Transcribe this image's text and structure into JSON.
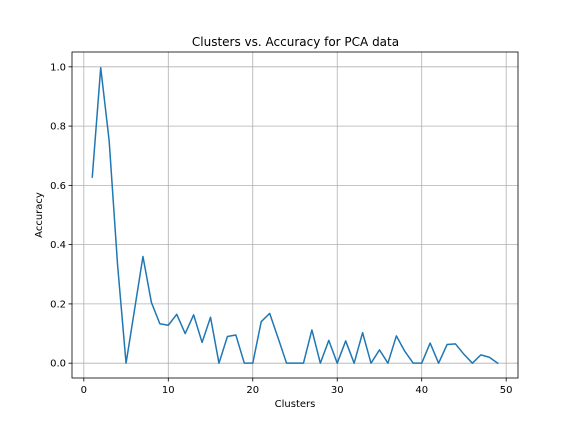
{
  "chart_data": {
    "type": "line",
    "title": "Clusters vs. Accuracy for PCA data",
    "xlabel": "Clusters",
    "ylabel": "Accuracy",
    "xlim": [
      -1.4,
      51.4
    ],
    "ylim": [
      -0.05,
      1.05
    ],
    "xticks": [
      0,
      10,
      20,
      30,
      40,
      50
    ],
    "yticks": [
      0.0,
      0.2,
      0.4,
      0.6,
      0.8,
      1.0
    ],
    "xtick_labels": [
      "0",
      "10",
      "20",
      "30",
      "40",
      "50"
    ],
    "ytick_labels": [
      "0.0",
      "0.2",
      "0.4",
      "0.6",
      "0.8",
      "1.0"
    ],
    "grid": true,
    "series": [
      {
        "color": "#1f77b4",
        "x": [
          1,
          2,
          3,
          4,
          5,
          6,
          7,
          8,
          9,
          10,
          11,
          12,
          13,
          14,
          15,
          16,
          17,
          18,
          19,
          20,
          21,
          22,
          23,
          24,
          25,
          26,
          27,
          28,
          29,
          30,
          31,
          32,
          33,
          34,
          35,
          36,
          37,
          38,
          39,
          40,
          41,
          42,
          43,
          44,
          45,
          46,
          47,
          48,
          49
        ],
        "y": [
          0.628,
          0.997,
          0.75,
          0.33,
          0.0,
          0.18,
          0.36,
          0.205,
          0.133,
          0.128,
          0.165,
          0.1,
          0.163,
          0.07,
          0.155,
          0.0,
          0.09,
          0.095,
          0.0,
          0.0,
          0.14,
          0.168,
          0.085,
          0.0,
          0.0,
          0.0,
          0.112,
          0.0,
          0.077,
          0.0,
          0.075,
          0.0,
          0.103,
          0.0,
          0.045,
          0.0,
          0.092,
          0.04,
          0.0,
          0.0,
          0.068,
          0.0,
          0.063,
          0.065,
          0.03,
          0.0,
          0.028,
          0.02,
          0.0
        ]
      }
    ]
  }
}
